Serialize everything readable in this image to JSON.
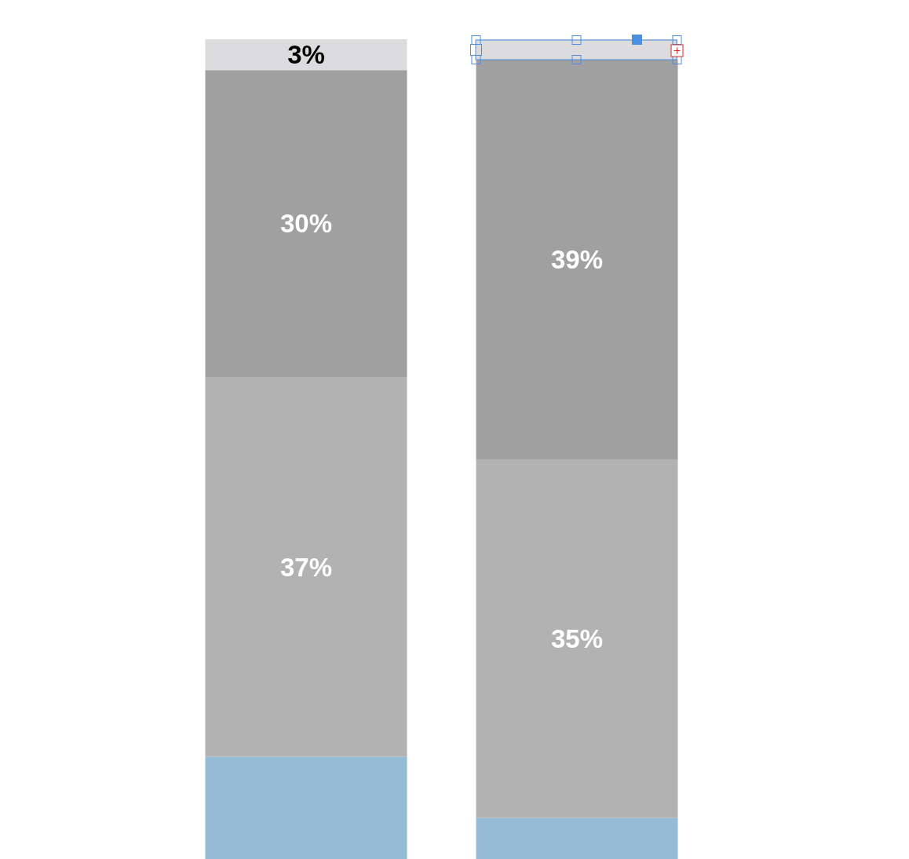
{
  "chart_data": {
    "type": "bar",
    "stacked": true,
    "categories": [
      null,
      null
    ],
    "ylim": [
      0,
      80
    ],
    "tick_labels": false,
    "series": [
      {
        "color": "#95bbd5",
        "values": [
          10,
          4
        ],
        "value_labels": [
          null,
          null
        ]
      },
      {
        "color": "#b2b2b2",
        "values": [
          37,
          35
        ],
        "value_labels": [
          "37%",
          "35%"
        ]
      },
      {
        "color": "#9fa09f",
        "values": [
          30,
          39
        ],
        "value_labels": [
          "30%",
          "39%"
        ]
      },
      {
        "color": "#dcdcde",
        "values": [
          3,
          2
        ],
        "value_labels": [
          "3%",
          null
        ]
      }
    ]
  }
}
